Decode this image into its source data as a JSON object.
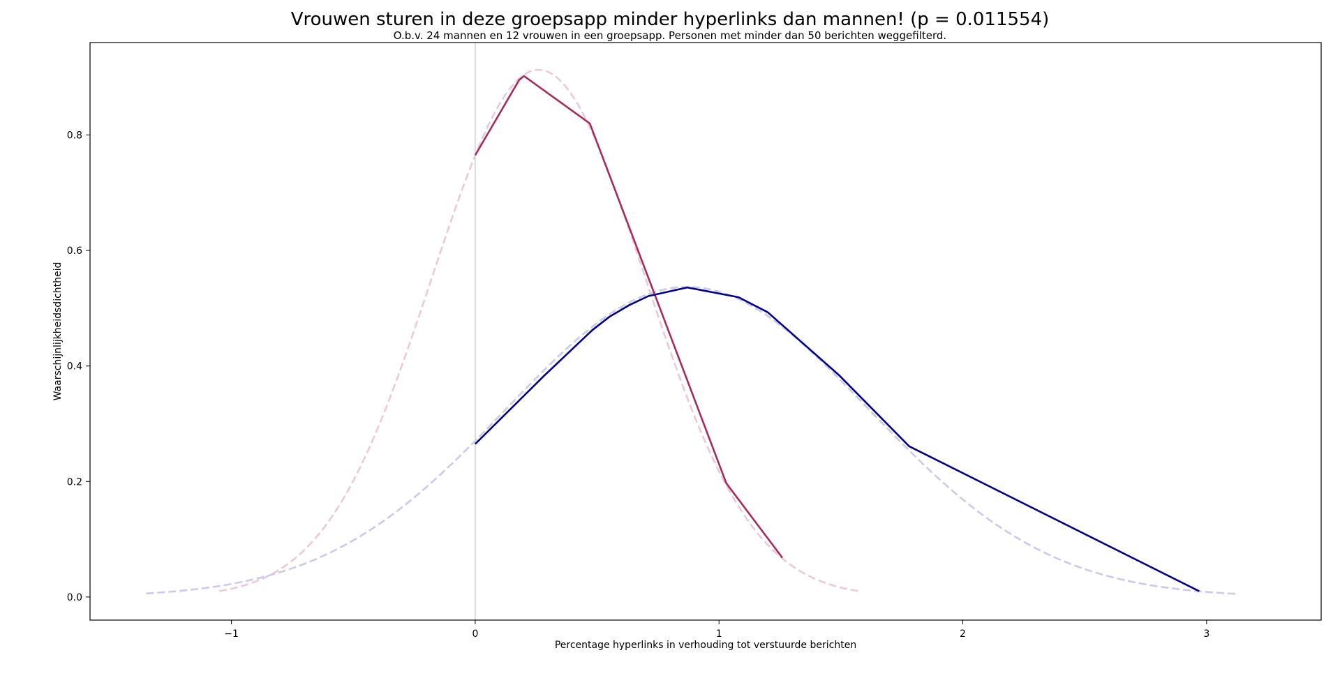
{
  "chart_data": {
    "type": "line",
    "title": "Vrouwen sturen in deze groepsapp minder hyperlinks dan mannen! (p = 0.011554)",
    "subtitle": "O.b.v. 24 mannen en 12 vrouwen in een groepsapp. Personen met minder dan 50 berichten weggefilterd.",
    "xlabel": "Percentage hyperlinks in verhouding tot verstuurde berichten",
    "ylabel": "Waarschijnlijkheidsdichtheid",
    "xlim": [
      -1.58,
      3.47
    ],
    "ylim": [
      -0.04,
      0.96
    ],
    "xticks": [
      -1,
      0,
      1,
      2,
      3
    ],
    "xtick_labels": [
      "−1",
      "0",
      "1",
      "2",
      "3"
    ],
    "yticks": [
      0.0,
      0.2,
      0.4,
      0.6,
      0.8
    ],
    "ytick_labels": [
      "0.0",
      "0.2",
      "0.4",
      "0.6",
      "0.8"
    ],
    "grid": false,
    "vline_x": 0,
    "colors": {
      "women": "#a62b5e",
      "men": "#00008b",
      "women_fit": "#edc9d8",
      "men_fit": "#cbc9ee",
      "vline": "#c8c8c8",
      "axes": "#000000"
    },
    "series": [
      {
        "key": "women_fit",
        "style": "dashed",
        "fit": {
          "mu": 0.26,
          "sigma": 0.437,
          "from": -1.05,
          "to": 1.57
        }
      },
      {
        "key": "men_fit",
        "style": "dashed",
        "fit": {
          "mu": 0.87,
          "sigma": 0.743,
          "from": -1.35,
          "to": 3.12
        }
      },
      {
        "key": "women",
        "style": "solid",
        "x": [
          0.0,
          0.18,
          0.2,
          0.47,
          1.03,
          1.26
        ],
        "y": [
          0.765,
          0.895,
          0.902,
          0.82,
          0.197,
          0.068
        ]
      },
      {
        "key": "men",
        "style": "solid",
        "x": [
          0.0,
          0.28,
          0.48,
          0.55,
          0.63,
          0.71,
          0.87,
          1.08,
          1.2,
          1.49,
          1.78,
          2.97
        ],
        "y": [
          0.265,
          0.382,
          0.462,
          0.485,
          0.505,
          0.521,
          0.536,
          0.519,
          0.493,
          0.385,
          0.261,
          0.01
        ]
      }
    ]
  }
}
